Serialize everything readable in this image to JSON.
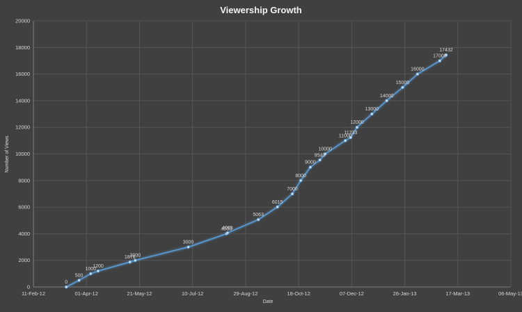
{
  "chart_data": {
    "type": "line",
    "title": "Viewership Growth",
    "xlabel": "Date",
    "ylabel": "Number of Views",
    "x_tick_labels": [
      "11-Feb-12",
      "01-Apr-12",
      "21-May-12",
      "10-Jul-12",
      "29-Aug-12",
      "18-Oct-12",
      "07-Dec-12",
      "26-Jan-13",
      "17-Mar-13",
      "06-May-13"
    ],
    "xlim": [
      "2012-02-11",
      "2013-05-06"
    ],
    "ylim": [
      0,
      20000
    ],
    "y_ticks": [
      0,
      2000,
      4000,
      6000,
      8000,
      10000,
      12000,
      14000,
      16000,
      18000,
      20000
    ],
    "grid": true,
    "series": [
      {
        "color": "#5b9bd5",
        "points": [
          {
            "x": "2012-03-13",
            "y": 0,
            "label": "0"
          },
          {
            "x": "2012-03-25",
            "y": 500,
            "label": "500"
          },
          {
            "x": "2012-04-05",
            "y": 1000,
            "label": "1000"
          },
          {
            "x": "2012-04-12",
            "y": 1200,
            "label": "1200"
          },
          {
            "x": "2012-05-12",
            "y": 1876,
            "label": "1876"
          },
          {
            "x": "2012-05-17",
            "y": 2000,
            "label": "2000"
          },
          {
            "x": "2012-07-06",
            "y": 3000,
            "label": "3000"
          },
          {
            "x": "2012-08-11",
            "y": 4000,
            "label": "4000"
          },
          {
            "x": "2012-08-12",
            "y": 4065,
            "label": "4065"
          },
          {
            "x": "2012-09-10",
            "y": 5063,
            "label": "5063"
          },
          {
            "x": "2012-09-28",
            "y": 6015,
            "label": "6015"
          },
          {
            "x": "2012-10-12",
            "y": 7000,
            "label": "7000"
          },
          {
            "x": "2012-10-20",
            "y": 8000,
            "label": "8000"
          },
          {
            "x": "2012-10-29",
            "y": 9000,
            "label": "9000"
          },
          {
            "x": "2012-11-07",
            "y": 9543,
            "label": "9543"
          },
          {
            "x": "2012-11-12",
            "y": 10000,
            "label": "10000"
          },
          {
            "x": "2012-12-01",
            "y": 11000,
            "label": "11000"
          },
          {
            "x": "2012-12-06",
            "y": 11233,
            "label": "11233"
          },
          {
            "x": "2012-12-12",
            "y": 12000,
            "label": "12000"
          },
          {
            "x": "2012-12-26",
            "y": 13000,
            "label": "13000"
          },
          {
            "x": "2013-01-09",
            "y": 14000,
            "label": "14000"
          },
          {
            "x": "2013-01-24",
            "y": 15000,
            "label": "15000"
          },
          {
            "x": "2013-02-07",
            "y": 16000,
            "label": "16000"
          },
          {
            "x": "2013-02-28",
            "y": 17000,
            "label": "17000"
          },
          {
            "x": "2013-03-06",
            "y": 17432,
            "label": "17432"
          }
        ]
      }
    ]
  }
}
